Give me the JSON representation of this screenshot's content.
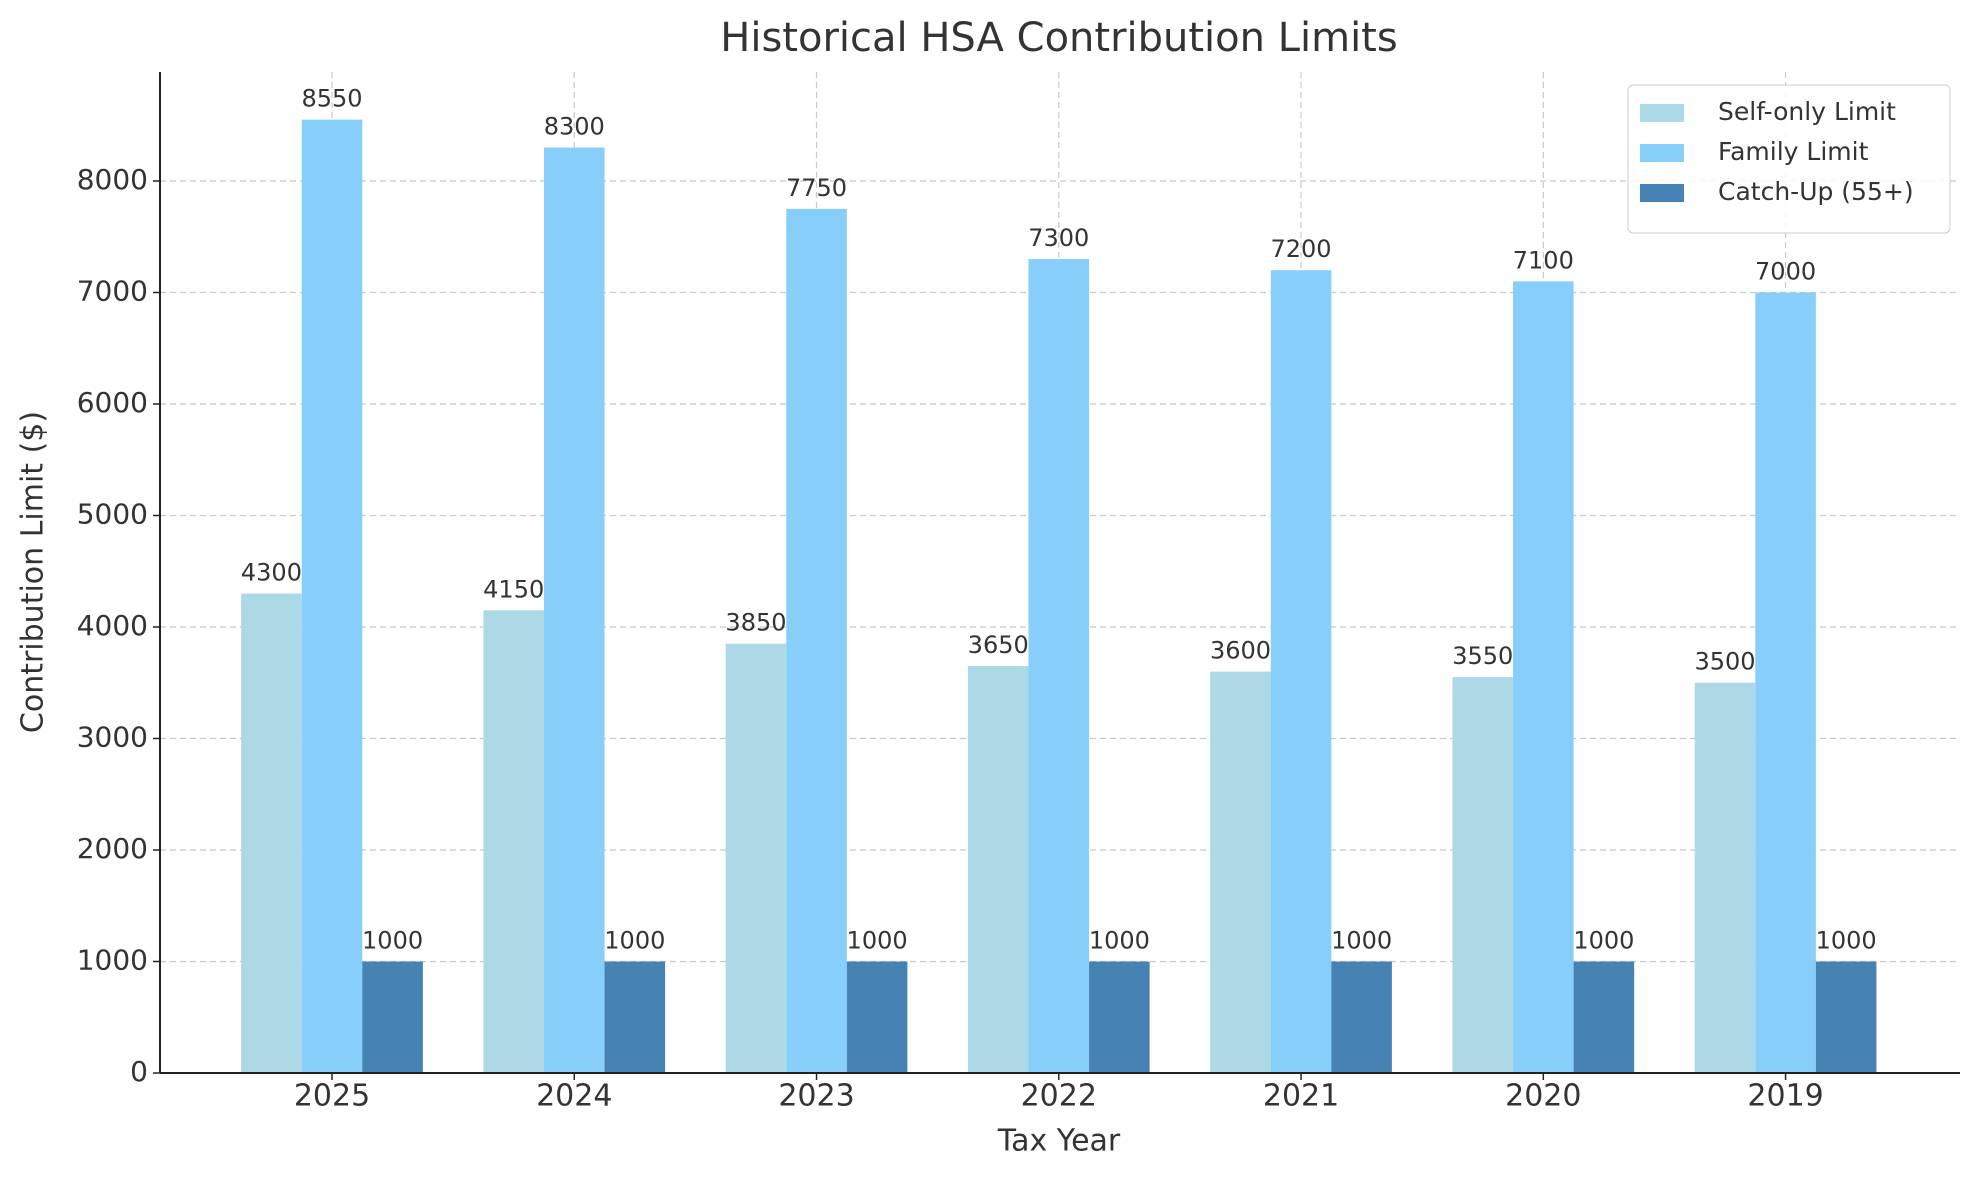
{
  "chart_data": {
    "type": "bar",
    "title": "Historical HSA Contribution Limits",
    "x_label": "Tax Year",
    "y_label": "Contribution Limit ($)",
    "categories": [
      "2025",
      "2024",
      "2023",
      "2022",
      "2021",
      "2020",
      "2019"
    ],
    "series": [
      {
        "name": "Self-only Limit",
        "color": "#add8e6",
        "values": [
          4300,
          4150,
          3850,
          3650,
          3600,
          3550,
          3500
        ]
      },
      {
        "name": "Family Limit",
        "color": "#87cefa",
        "values": [
          8550,
          8300,
          7750,
          7300,
          7200,
          7100,
          7000
        ]
      },
      {
        "name": "Catch-Up (55+)",
        "color": "#4682b4",
        "values": [
          1000,
          1000,
          1000,
          1000,
          1000,
          1000,
          1000
        ]
      }
    ],
    "ylim": [
      0,
      8977.5
    ],
    "yticks": [
      0,
      1000,
      2000,
      3000,
      4000,
      5000,
      6000,
      7000,
      8000
    ],
    "grid": true,
    "legend": "upper right"
  }
}
